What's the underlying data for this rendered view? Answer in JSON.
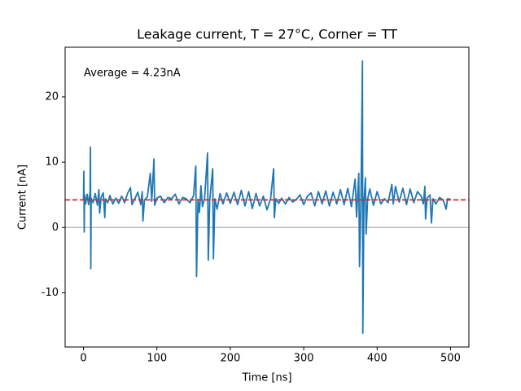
{
  "chart_data": {
    "type": "line",
    "title": "Leakage current, T = 27°C, Corner = TT",
    "xlabel": "Time [ns]",
    "ylabel": "Current [nA]",
    "annotation": "Average = 4.23nA",
    "xlim": [
      -25,
      525
    ],
    "ylim": [
      -18.3,
      27.6
    ],
    "xticks": [
      0,
      100,
      200,
      300,
      400,
      500
    ],
    "yticks": [
      -10,
      0,
      10,
      20
    ],
    "zero_line": {
      "value": 0,
      "color": "#b0b0b0"
    },
    "average_line": {
      "value": 4.23,
      "color": "#d62728",
      "style": "dashed"
    },
    "series": [
      {
        "color": "#1f77b4",
        "x": [
          0,
          0.5,
          1,
          1.5,
          3,
          5,
          7,
          9,
          9.5,
          10,
          10.5,
          13,
          16,
          19,
          21,
          22,
          24,
          27,
          29,
          30,
          33,
          36,
          40,
          44,
          48,
          52,
          56,
          60,
          64,
          66,
          70,
          74,
          78,
          80,
          81,
          83,
          87,
          91,
          93,
          96,
          97,
          100,
          105,
          110,
          115,
          120,
          125,
          130,
          135,
          140,
          145,
          150,
          153,
          154,
          156,
          158,
          160,
          162,
          165,
          169,
          170,
          172,
          176,
          177,
          179,
          182,
          186,
          190,
          195,
          200,
          205,
          210,
          215,
          220,
          225,
          230,
          235,
          240,
          245,
          250,
          255,
          259,
          260,
          262,
          266,
          270,
          275,
          280,
          285,
          290,
          295,
          300,
          305,
          310,
          315,
          320,
          325,
          330,
          335,
          340,
          345,
          350,
          355,
          360,
          365,
          370,
          372,
          375,
          376,
          378,
          380,
          380.5,
          382,
          384,
          385,
          387,
          390,
          395,
          400,
          405,
          410,
          415,
          420,
          422,
          425,
          430,
          435,
          440,
          445,
          450,
          455,
          460,
          463,
          465,
          466,
          468,
          472,
          474,
          476,
          480,
          485,
          490,
          494,
          496,
          500
        ],
        "values": [
          4.2,
          8.6,
          -0.7,
          5,
          3.6,
          5.1,
          3.5,
          5.5,
          12.3,
          -6.3,
          4.5,
          3.8,
          5.2,
          3.4,
          5.8,
          2.2,
          4.6,
          5.3,
          1.5,
          4.4,
          3.8,
          4.9,
          3.6,
          4.5,
          3.7,
          4.8,
          3.8,
          5.2,
          6.1,
          3.5,
          4.4,
          5.4,
          3.5,
          5.5,
          1,
          4.2,
          4.7,
          8.3,
          4,
          10.5,
          3.4,
          4.5,
          4.8,
          3.8,
          4.6,
          4.4,
          5.1,
          3.6,
          4.6,
          4.4,
          3.8,
          4.9,
          9.4,
          -7.5,
          4.3,
          2.3,
          6.4,
          3.2,
          4.5,
          11.4,
          -5,
          4.2,
          9,
          -4.8,
          4.4,
          2.8,
          5.2,
          3.6,
          5.3,
          3.7,
          5.4,
          3.5,
          5.7,
          3.3,
          5.5,
          2.9,
          5.2,
          3.3,
          4.8,
          2.7,
          4.5,
          9,
          1.5,
          4.4,
          3.7,
          4.5,
          3.6,
          4.6,
          3.9,
          4.3,
          5,
          3.5,
          4.8,
          5.3,
          3.3,
          5.5,
          3.6,
          5.6,
          3.3,
          5.4,
          3.6,
          5.8,
          3.5,
          6,
          3.2,
          7.4,
          1.6,
          8.3,
          -6,
          4.4,
          25.5,
          -16.2,
          3.8,
          7.6,
          -1,
          4.3,
          5.9,
          3.4,
          5.5,
          3.6,
          4.4,
          3.8,
          6.6,
          3.6,
          6.3,
          3.9,
          6,
          3.5,
          5.9,
          3.8,
          5.5,
          4.8,
          3.6,
          6.3,
          1.3,
          4.5,
          5,
          0.7,
          4.4,
          3.6,
          4.6,
          4.2,
          2.8,
          4.4,
          4.3
        ]
      }
    ]
  }
}
